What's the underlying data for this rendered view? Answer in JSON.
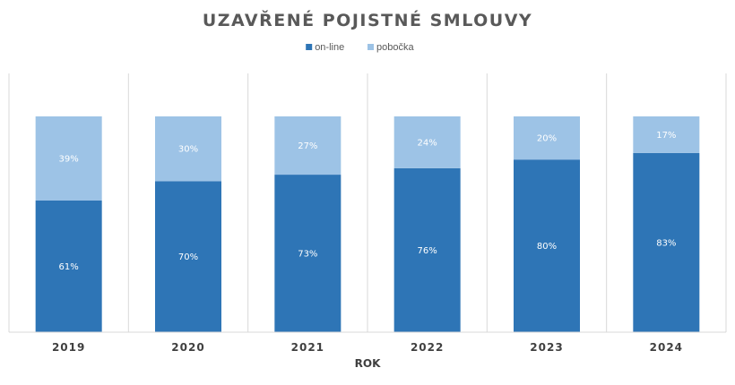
{
  "chart_data": {
    "type": "bar",
    "stacked": true,
    "percent_stacked": true,
    "title": "UZAVŘENÉ POJISTNÉ SMLOUVY",
    "xlabel": "ROK",
    "ylabel": "",
    "categories": [
      "2019",
      "2020",
      "2021",
      "2022",
      "2023",
      "2024"
    ],
    "series": [
      {
        "name": "on-line",
        "color": "#2e75b6",
        "label_color": "#ffffff",
        "values": [
          61,
          70,
          73,
          76,
          80,
          83
        ],
        "labels": [
          "61%",
          "70%",
          "73%",
          "76%",
          "80%",
          "83%"
        ]
      },
      {
        "name": "pobočka",
        "color": "#9dc3e6",
        "label_color": "#ffffff",
        "values": [
          39,
          30,
          27,
          24,
          20,
          17
        ],
        "labels": [
          "39%",
          "30%",
          "27%",
          "24%",
          "20%",
          "17%"
        ]
      }
    ],
    "ylim": [
      0,
      100
    ],
    "legend": "top-center",
    "grid": "vertical category separators"
  }
}
